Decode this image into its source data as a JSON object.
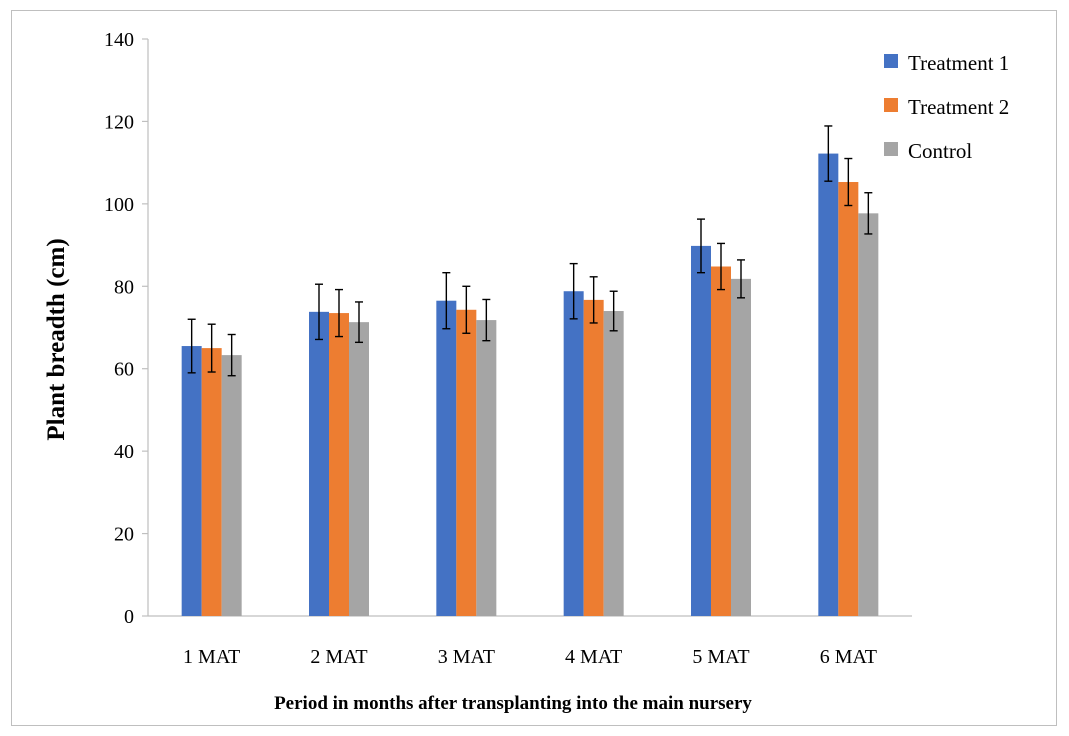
{
  "chart_data": {
    "type": "bar",
    "title": "",
    "xlabel": "Period in months after transplanting into the main nursery",
    "ylabel": "Plant breadth (cm)",
    "ylim": [
      0,
      140
    ],
    "yticks": [
      0,
      20,
      40,
      60,
      80,
      100,
      120,
      140
    ],
    "categories": [
      "1 MAT",
      "2 MAT",
      "3 MAT",
      "4 MAT",
      "5 MAT",
      "6 MAT"
    ],
    "series": [
      {
        "name": "Treatment 1",
        "color": "#4472c4",
        "values": [
          65.5,
          73.8,
          76.5,
          78.8,
          89.8,
          112.2
        ],
        "errors": [
          6.5,
          6.7,
          6.8,
          6.7,
          6.5,
          6.7
        ]
      },
      {
        "name": "Treatment 2",
        "color": "#ed7d31",
        "values": [
          65.0,
          73.5,
          74.3,
          76.7,
          84.8,
          105.3
        ],
        "errors": [
          5.8,
          5.7,
          5.7,
          5.6,
          5.6,
          5.7
        ]
      },
      {
        "name": "Control",
        "color": "#a5a5a5",
        "values": [
          63.3,
          71.3,
          71.8,
          74.0,
          81.8,
          97.7
        ],
        "errors": [
          5.0,
          4.9,
          5.0,
          4.8,
          4.6,
          5.0
        ]
      }
    ],
    "grid": false,
    "legend": "right"
  }
}
